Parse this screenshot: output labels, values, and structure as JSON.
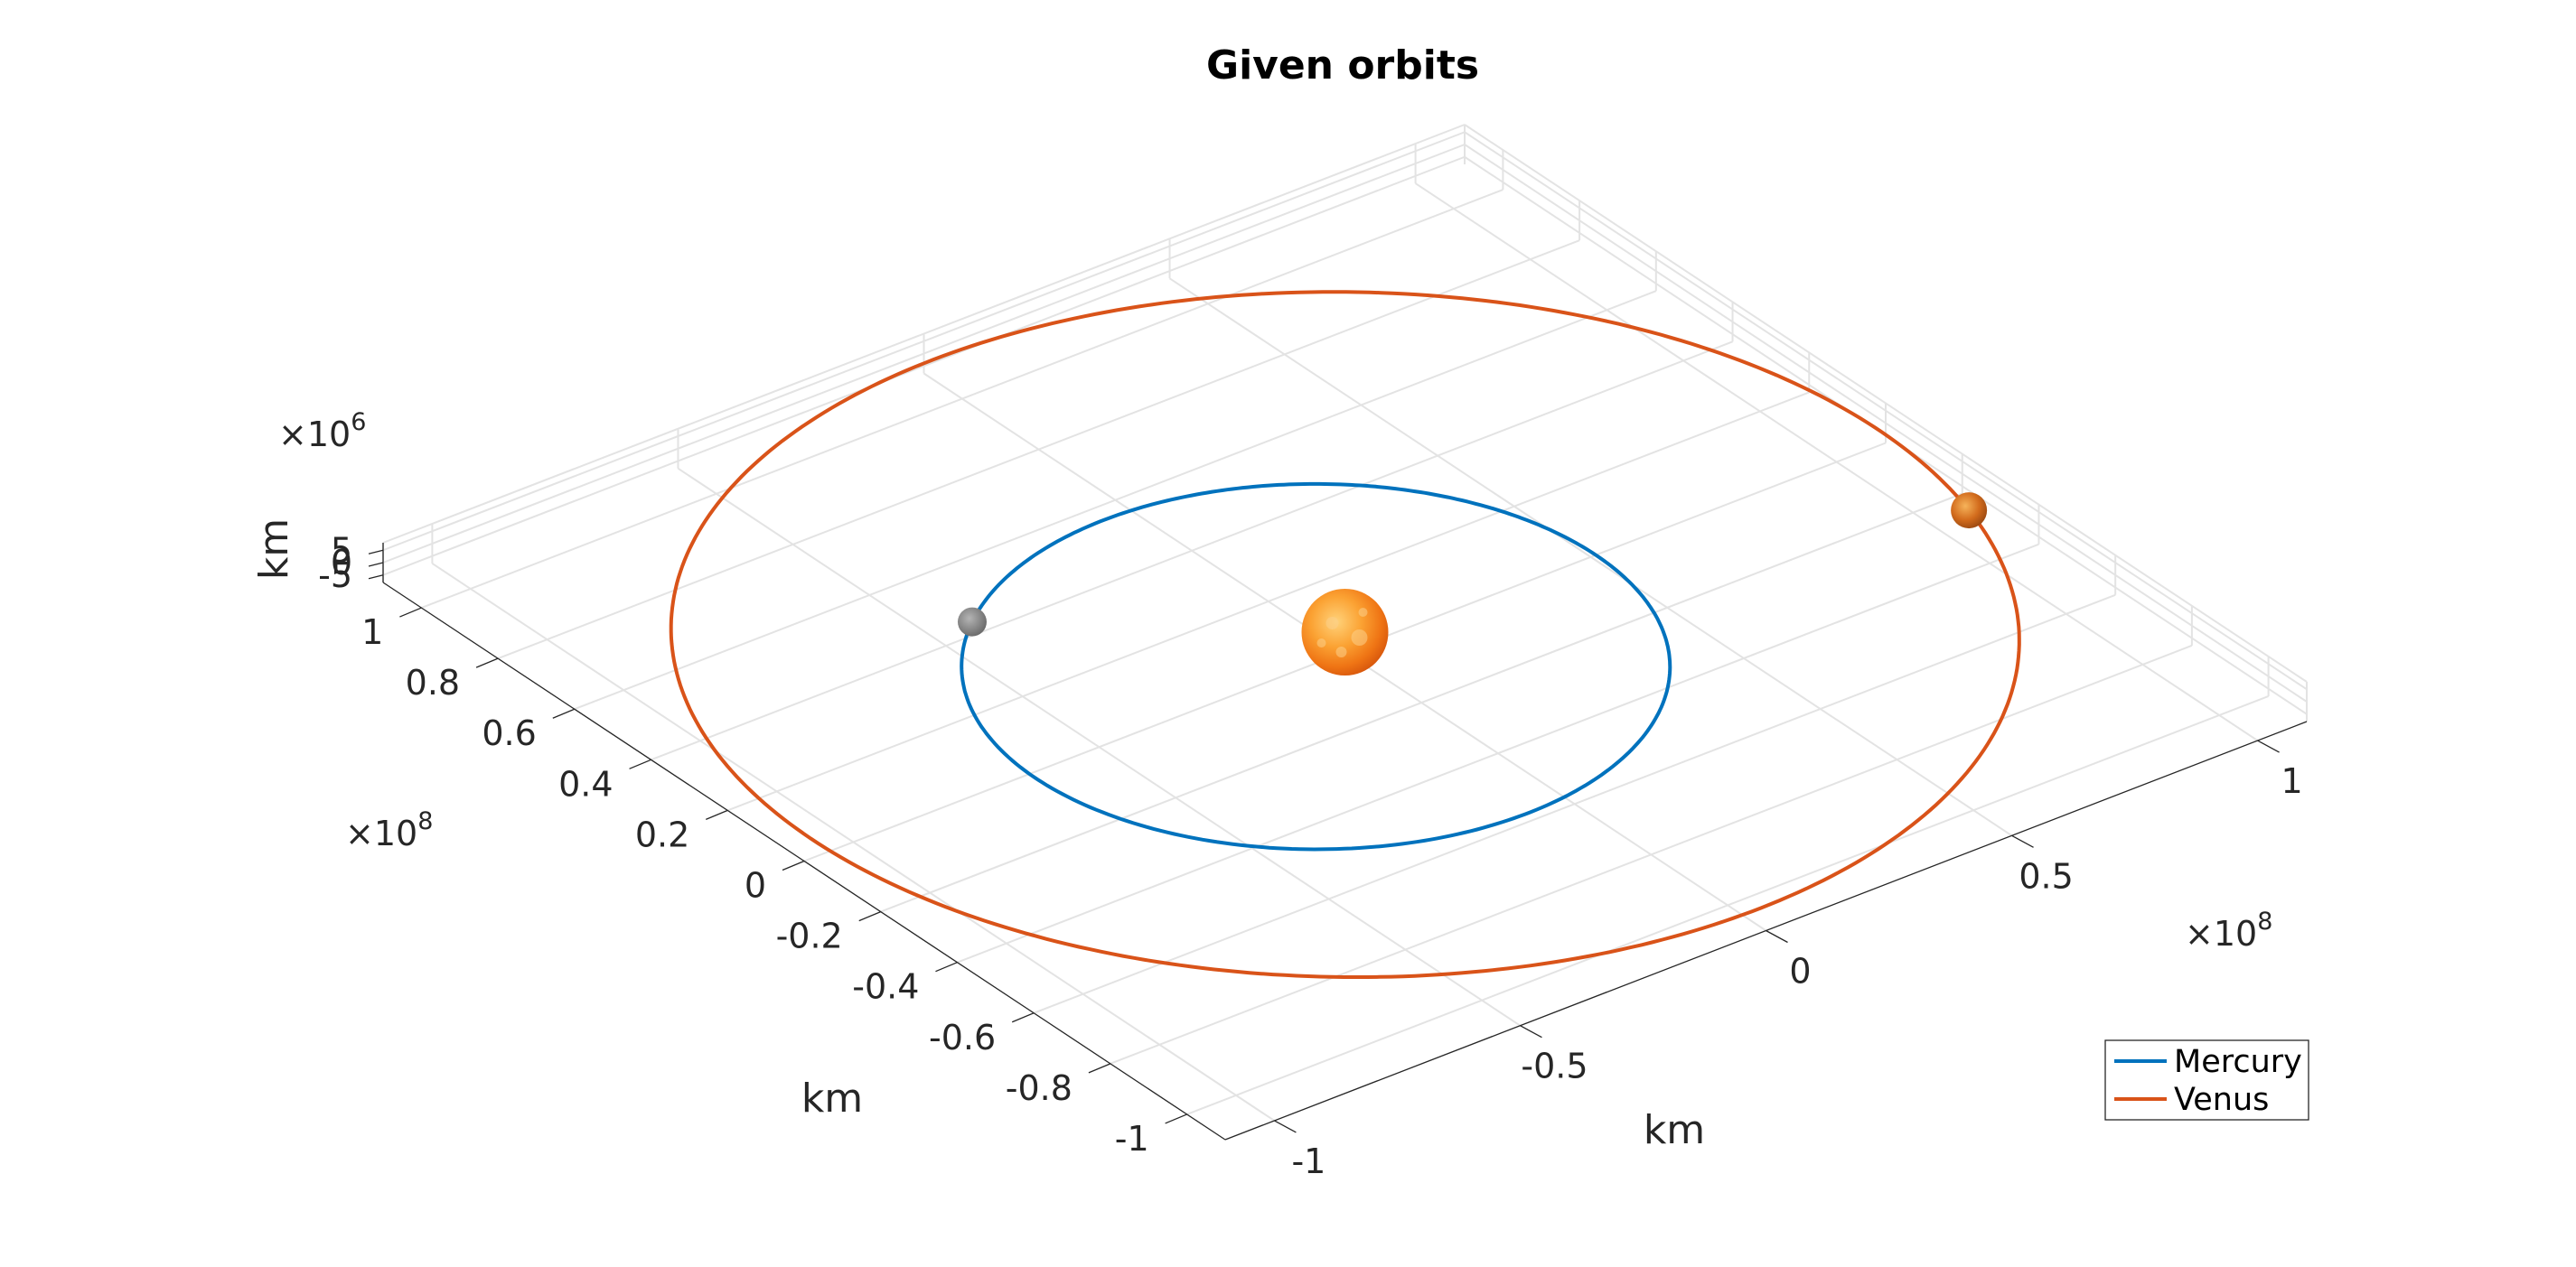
{
  "chart_data": {
    "type": "line",
    "title": "Given orbits",
    "view": "3-D perspective, orbits in the x-y plane",
    "grid": true,
    "legend_position": "bottom-right",
    "xlabel": "km",
    "ylabel": "km",
    "zlabel": "km",
    "x_multiplier": "×10^8",
    "y_multiplier": "×10^8",
    "z_multiplier": "×10^6",
    "x_multiplier_base": "×10",
    "x_multiplier_exp": "8",
    "y_multiplier_base": "×10",
    "y_multiplier_exp": "8",
    "z_multiplier_base": "×10",
    "z_multiplier_exp": "6",
    "xlim": [
      -1.1,
      1.1
    ],
    "ylim": [
      -1.1,
      1.1
    ],
    "zlim": [
      -8,
      8
    ],
    "x_ticks": [
      "-1",
      "-0.5",
      "0",
      "0.5",
      "1"
    ],
    "x_tick_values": [
      -1,
      -0.5,
      0,
      0.5,
      1
    ],
    "y_ticks": [
      "-1",
      "-0.8",
      "-0.6",
      "-0.4",
      "-0.2",
      "0",
      "0.2",
      "0.4",
      "0.6",
      "0.8",
      "1"
    ],
    "y_tick_values": [
      -1,
      -0.8,
      -0.6,
      -0.4,
      -0.2,
      0,
      0.2,
      0.4,
      0.6,
      0.8,
      1
    ],
    "z_ticks": [
      "-5",
      "0",
      "5"
    ],
    "z_tick_values": [
      -5,
      0,
      5
    ],
    "series": [
      {
        "name": "Mercury",
        "color": "#0072BD",
        "semi_major_axis": 0.579,
        "eccentricity": 0.206,
        "perihelion_angle_deg": 29,
        "planet_position_angle_deg": 140,
        "planet_color": "#8a8a8a"
      },
      {
        "name": "Venus",
        "color": "#D95319",
        "semi_major_axis": 1.082,
        "eccentricity": 0.007,
        "perihelion_angle_deg": 55,
        "planet_position_angle_deg": -16,
        "planet_color": "#c8661c"
      }
    ],
    "sun": {
      "x": 0,
      "y": 0,
      "z": 0,
      "color": "#f5841f"
    }
  }
}
